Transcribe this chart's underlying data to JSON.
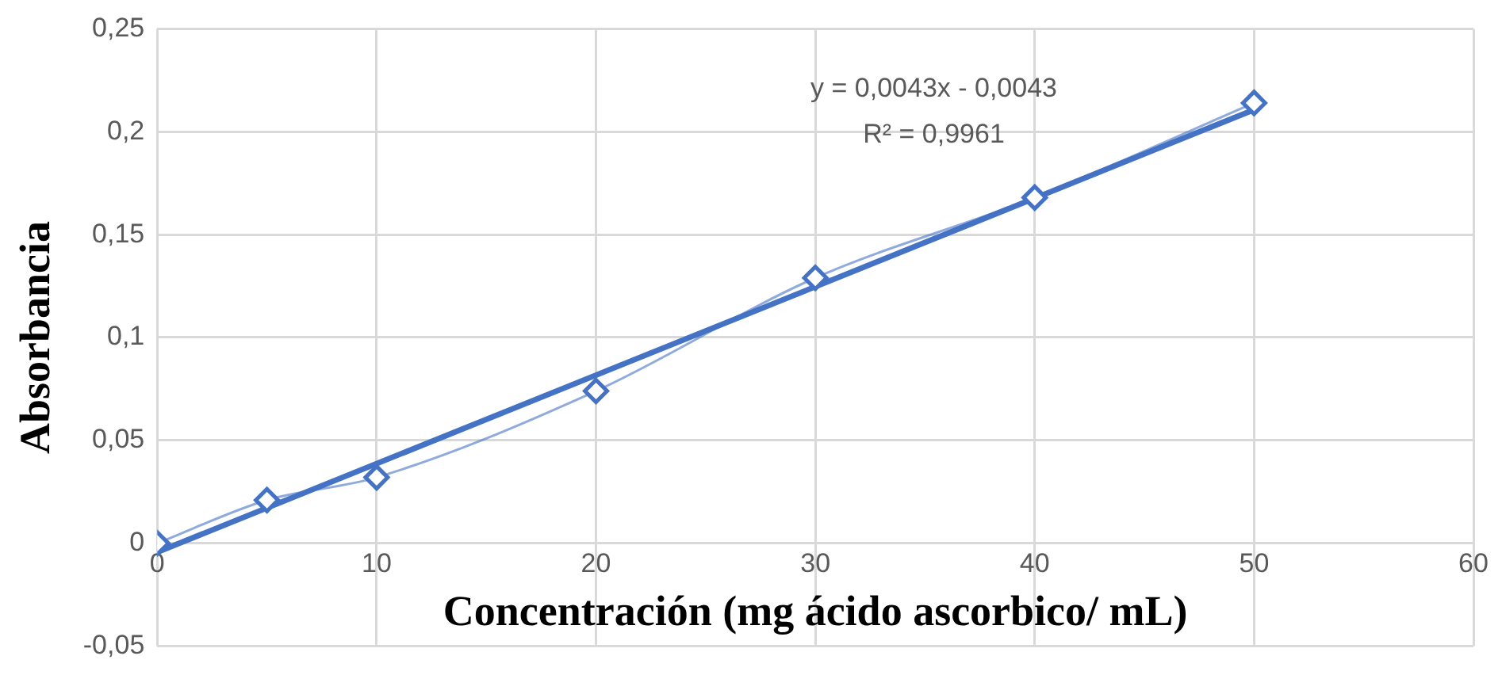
{
  "chart_data": {
    "type": "line",
    "xlabel": "Concentración (mg ácido ascorbico/ mL)",
    "ylabel": "Absorbancia",
    "x": [
      0,
      5,
      10,
      20,
      30,
      40,
      50
    ],
    "series": [
      {
        "color": "#4472c4",
        "marker": "diamond",
        "values": [
          0,
          0.021,
          0.032,
          0.074,
          0.129,
          0.168,
          0.214
        ]
      },
      {
        "color": "#4472c4",
        "marker": "none",
        "x": [
          0,
          50
        ],
        "values": [
          -0.0043,
          0.2107
        ]
      }
    ],
    "grid": true,
    "legend": false,
    "xlim": [
      0,
      60
    ],
    "xticks": [
      0,
      10,
      20,
      30,
      40,
      50,
      60
    ],
    "ylim": [
      -0.05,
      0.25
    ],
    "yticks": [
      {
        "value": -0.05,
        "label": "-0,05"
      },
      0,
      {
        "value": 0.05,
        "label": "0,05"
      },
      {
        "value": 0.1,
        "label": "0,1"
      },
      {
        "value": 0.15,
        "label": "0,15"
      },
      {
        "value": 0.2,
        "label": "0,2"
      },
      {
        "value": 0.25,
        "label": "0,25"
      }
    ],
    "annotations": [
      "y = 0,0043x - 0,0043",
      "R² = 0,9961"
    ]
  }
}
